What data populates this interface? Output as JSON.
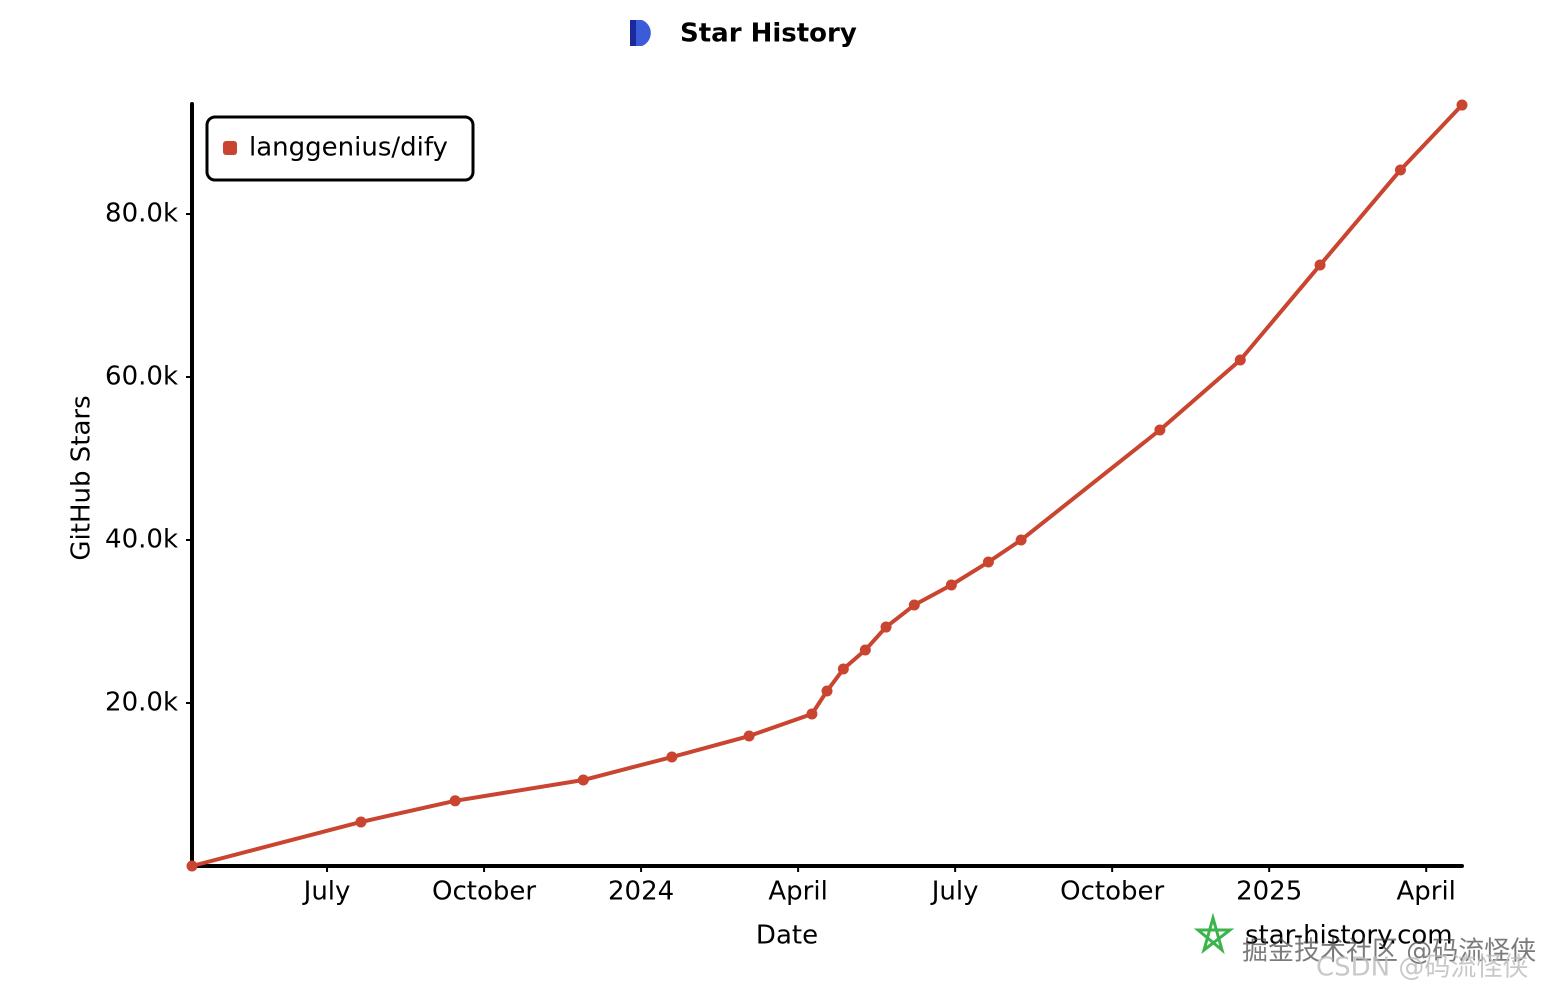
{
  "chart_data": {
    "type": "line",
    "title": "Star History",
    "x_label": "Date",
    "y_label": "GitHub Stars",
    "x": [
      2023.285,
      2023.554,
      2023.704,
      2023.908,
      2024.049,
      2024.172,
      2024.272,
      2024.296,
      2024.322,
      2024.357,
      2024.39,
      2024.435,
      2024.494,
      2024.553,
      2024.605,
      2024.826,
      2024.954,
      2025.081,
      2025.209,
      2025.307
    ],
    "series": [
      {
        "name": "langgenius/dify",
        "color": "#c9452f",
        "values": [
          0,
          5400,
          8000,
          10550,
          13370,
          15950,
          18650,
          21470,
          24170,
          26500,
          29320,
          32020,
          34480,
          37300,
          40000,
          53500,
          62085,
          73740,
          85400,
          93370
        ]
      }
    ],
    "xlim": [
      2023.285,
      2025.307
    ],
    "xticks": [
      {
        "value": 2023.5,
        "label": "July"
      },
      {
        "value": 2023.75,
        "label": "October"
      },
      2024,
      {
        "value": 2024.25,
        "label": "April"
      },
      {
        "value": 2024.5,
        "label": "July"
      },
      {
        "value": 2024.75,
        "label": "October"
      },
      2025,
      {
        "value": 2025.25,
        "label": "April"
      }
    ],
    "ylim": [
      0,
      93500
    ],
    "yticks": [
      {
        "value": 20000,
        "label": "20.0k"
      },
      {
        "value": 40000,
        "label": "40.0k"
      },
      {
        "value": 60000,
        "label": "60.0k"
      },
      {
        "value": 80000,
        "label": "80.0k"
      }
    ],
    "legend": "top-left",
    "grid": false,
    "watermark": "star-history.com",
    "overlay_watermarks": [
      "掘金技术社区 @码流怪侠",
      "CSDN @码流怪侠"
    ]
  }
}
